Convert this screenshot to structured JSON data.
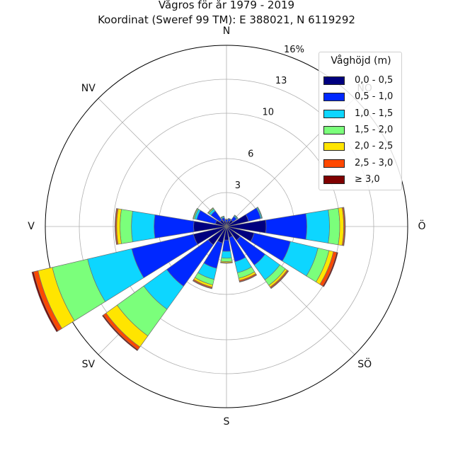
{
  "title": {
    "line1": "Vågros för år 1979 - 2019",
    "line2": "Koordinat (Sweref 99 TM): E 388021, N 6119292"
  },
  "chart_data": {
    "type": "windrose",
    "unit": "%",
    "directions_deg": [
      0,
      22.5,
      45,
      67.5,
      90,
      112.5,
      135,
      157.5,
      180,
      202.5,
      225,
      247.5,
      270,
      292.5,
      315,
      337.5
    ],
    "compass_labels": [
      {
        "text": "N",
        "angle": 0
      },
      {
        "text": "NO",
        "angle": 45
      },
      {
        "text": "Ö",
        "angle": 90
      },
      {
        "text": "SÖ",
        "angle": 135
      },
      {
        "text": "S",
        "angle": 180
      },
      {
        "text": "SV",
        "angle": 225
      },
      {
        "text": "V",
        "angle": 270
      },
      {
        "text": "NV",
        "angle": 315
      }
    ],
    "radial_ticks": [
      3,
      6,
      10,
      13,
      16
    ],
    "radial_tick_labels": [
      "3",
      "6",
      "10",
      "13",
      "16%"
    ],
    "rmax": 16,
    "grid": true,
    "legend_title": "Våghöjd (m)",
    "legend_position": "top-right",
    "series": [
      {
        "name": "0,0 - 0,5",
        "color": "#00007f",
        "values": [
          0.4,
          0.5,
          0.7,
          2.0,
          3.5,
          2.5,
          1.5,
          1.0,
          1.2,
          1.5,
          2.0,
          3.0,
          2.9,
          1.0,
          0.7,
          0.5
        ]
      },
      {
        "name": "0,5 - 1,0",
        "color": "#0028ff",
        "values": [
          0.2,
          0.2,
          0.4,
          1.1,
          3.6,
          3.3,
          2.7,
          2.2,
          1.0,
          2.3,
          4.5,
          5.6,
          3.5,
          1.7,
          1.0,
          0.3
        ]
      },
      {
        "name": "1,0 - 1,5",
        "color": "#0dd6ff",
        "values": [
          0.05,
          0.05,
          0.1,
          0.1,
          2.0,
          2.5,
          1.6,
          1.0,
          0.6,
          1.0,
          2.5,
          4.0,
          2.0,
          0.2,
          0.2,
          0.1
        ]
      },
      {
        "name": "1,5 - 2,0",
        "color": "#7bff7b",
        "values": [
          0.0,
          0.0,
          0.05,
          0.05,
          0.9,
          1.0,
          0.6,
          0.5,
          0.3,
          0.5,
          2.9,
          3.2,
          1.0,
          0.1,
          0.1,
          0.05
        ]
      },
      {
        "name": "2,0 - 2,5",
        "color": "#ffe500",
        "values": [
          0.0,
          0.0,
          0.0,
          0.0,
          0.35,
          0.4,
          0.2,
          0.2,
          0.1,
          0.2,
          1.2,
          1.3,
          0.3,
          0.05,
          0.05,
          0.0
        ]
      },
      {
        "name": "2,5 - 3,0",
        "color": "#ff4800",
        "values": [
          0.0,
          0.0,
          0.0,
          0.0,
          0.1,
          0.3,
          0.1,
          0.1,
          0.05,
          0.1,
          0.3,
          0.4,
          0.1,
          0.0,
          0.0,
          0.0
        ]
      },
      {
        "name": "≥ 3,0",
        "color": "#7f0000",
        "values": [
          0.0,
          0.0,
          0.0,
          0.0,
          0.05,
          0.1,
          0.05,
          0.05,
          0.0,
          0.05,
          0.1,
          0.15,
          0.05,
          0.0,
          0.0,
          0.0
        ]
      }
    ]
  }
}
